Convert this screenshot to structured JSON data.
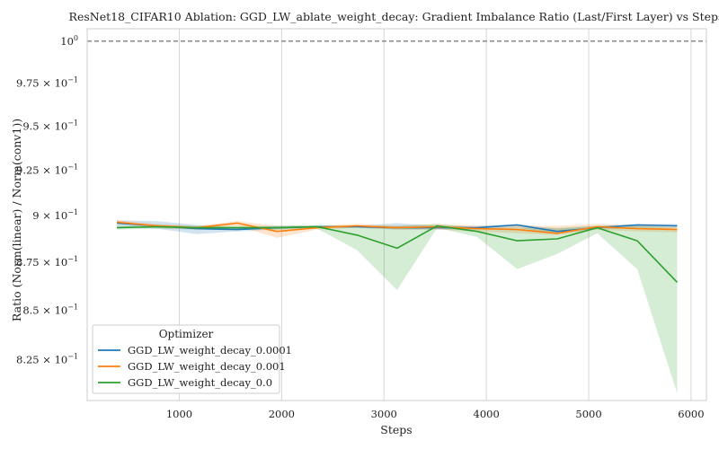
{
  "chart_data": {
    "type": "line",
    "title": "ResNet18_CIFAR10 Ablation: GGD_LW_ablate_weight_decay: Gradient Imbalance Ratio (Last/First Layer) vs Steps",
    "xlabel": "Steps",
    "ylabel": "Ratio (Norm(linear) / Norm(conv1))",
    "xlim": [
      100,
      6150
    ],
    "ylim": [
      0.805,
      1.0075
    ],
    "yscale": "log",
    "grid": true,
    "x_ticks": [
      {
        "value": 1000,
        "label": "1000"
      },
      {
        "value": 2000,
        "label": "2000"
      },
      {
        "value": 3000,
        "label": "3000"
      },
      {
        "value": 4000,
        "label": "4000"
      },
      {
        "value": 5000,
        "label": "5000"
      },
      {
        "value": 6000,
        "label": "6000"
      }
    ],
    "y_ticks": [
      {
        "value": 1.0,
        "base": "10",
        "exp": "0"
      },
      {
        "value": 0.975,
        "base": "9.75 × 10",
        "exp": "−1"
      },
      {
        "value": 0.95,
        "base": "9.5 × 10",
        "exp": "−1"
      },
      {
        "value": 0.925,
        "base": "9.25 × 10",
        "exp": "−1"
      },
      {
        "value": 0.9,
        "base": "9 × 10",
        "exp": "−1"
      },
      {
        "value": 0.875,
        "base": "8.75 × 10",
        "exp": "−1"
      },
      {
        "value": 0.85,
        "base": "8.5 × 10",
        "exp": "−1"
      },
      {
        "value": 0.825,
        "base": "8.25 × 10",
        "exp": "−1"
      }
    ],
    "reference_line": {
      "y": 1.0,
      "style": "dashed",
      "color": "#808080"
    },
    "legend": {
      "title": "Optimizer",
      "position": "lower-left"
    },
    "x": [
      391,
      782,
      1173,
      1564,
      1955,
      2346,
      2737,
      3128,
      3519,
      3910,
      4301,
      4692,
      5083,
      5474,
      5865
    ],
    "series": [
      {
        "name": "GGD_LW_weight_decay_0.0001",
        "color": "#1f77b4",
        "values": [
          0.896,
          0.8945,
          0.893,
          0.8925,
          0.8935,
          0.894,
          0.894,
          0.8935,
          0.8935,
          0.8935,
          0.895,
          0.8915,
          0.8935,
          0.895,
          0.8945
        ],
        "lower": [
          0.894,
          0.893,
          0.89,
          0.8915,
          0.8925,
          0.8935,
          0.8935,
          0.8925,
          0.8925,
          0.8925,
          0.8935,
          0.8905,
          0.8925,
          0.8935,
          0.8935
        ],
        "upper": [
          0.8975,
          0.897,
          0.895,
          0.8935,
          0.8945,
          0.8945,
          0.8945,
          0.896,
          0.8945,
          0.8945,
          0.8955,
          0.893,
          0.8945,
          0.8955,
          0.8955
        ]
      },
      {
        "name": "GGD_LW_weight_decay_0.001",
        "color": "#ff7f0e",
        "values": [
          0.8965,
          0.8945,
          0.8935,
          0.896,
          0.8915,
          0.8935,
          0.8945,
          0.8935,
          0.894,
          0.893,
          0.8925,
          0.8905,
          0.894,
          0.893,
          0.8925
        ],
        "lower": [
          0.8955,
          0.8935,
          0.8925,
          0.8945,
          0.888,
          0.8925,
          0.8935,
          0.8925,
          0.8925,
          0.8915,
          0.8905,
          0.8895,
          0.8925,
          0.8915,
          0.891
        ],
        "upper": [
          0.8975,
          0.8955,
          0.8945,
          0.897,
          0.8945,
          0.8945,
          0.8955,
          0.8945,
          0.8955,
          0.8945,
          0.8945,
          0.8945,
          0.8955,
          0.8945,
          0.894
        ]
      },
      {
        "name": "GGD_LW_weight_decay_0.0",
        "color": "#2ca02c",
        "values": [
          0.8935,
          0.894,
          0.8935,
          0.8935,
          0.8935,
          0.894,
          0.8895,
          0.8825,
          0.8945,
          0.8915,
          0.8865,
          0.8875,
          0.8935,
          0.8865,
          0.8645
        ],
        "lower": [
          0.8925,
          0.893,
          0.8925,
          0.8925,
          0.8925,
          0.893,
          0.8815,
          0.8605,
          0.8935,
          0.8885,
          0.8715,
          0.8795,
          0.8905,
          0.8715,
          0.8085
        ],
        "upper": [
          0.8945,
          0.895,
          0.8945,
          0.8945,
          0.8945,
          0.895,
          0.8945,
          0.8945,
          0.8955,
          0.8935,
          0.8935,
          0.8935,
          0.8945,
          0.8945,
          0.8935
        ]
      }
    ]
  }
}
